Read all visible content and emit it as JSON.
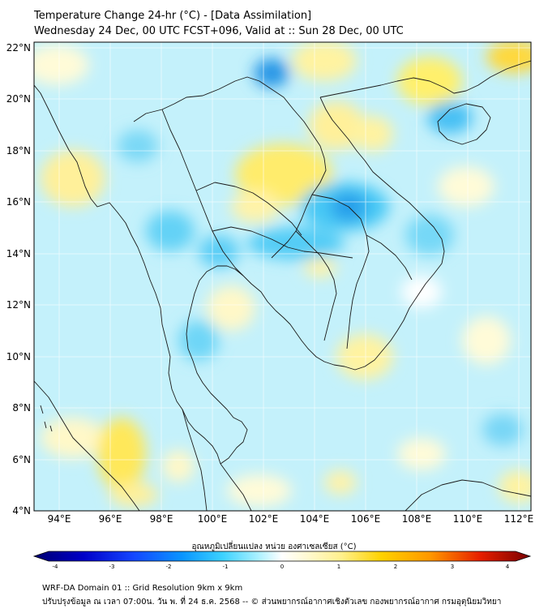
{
  "title": {
    "line1": "Temperature Change 24-hr (°C) - [Data Assimilation]",
    "line2": "Wednesday 24 Dec, 00 UTC FCST+096, Valid at :: Sun 28 Dec, 00 UTC"
  },
  "map": {
    "lat_labels": [
      "22°N",
      "20°N",
      "18°N",
      "16°N",
      "14°N",
      "12°N",
      "10°N",
      "8°N",
      "6°N",
      "4°N"
    ],
    "lon_labels": [
      "94°E",
      "96°E",
      "98°E",
      "100°E",
      "102°E",
      "104°E",
      "106°E",
      "108°E",
      "110°E",
      "112°E"
    ],
    "lat_range": [
      4,
      22
    ],
    "lon_range": [
      93,
      112.5
    ],
    "grid": true
  },
  "colorbar": {
    "label": "อุณหภูมิเปลี่ยนแปลง หน่วย องศาเซลเซียส (°C)",
    "ticks": [
      "-4",
      "-3",
      "-2",
      "-1",
      "0",
      "1",
      "2",
      "3",
      "4"
    ],
    "range": [
      -4,
      4
    ],
    "colors": [
      "#000080",
      "#0000d0",
      "#1e3cff",
      "#0096ff",
      "#28c8ff",
      "#78e6ff",
      "#d2faff",
      "#ffffff",
      "#fffae0",
      "#fff08c",
      "#ffd700",
      "#ffa500",
      "#ff6400",
      "#e60000",
      "#a00000",
      "#640000"
    ]
  },
  "footer": {
    "line1": "WRF-DA Domain 01 :: Grid Resolution 9km x 9km",
    "line2": "ปรับปรุงข้อมูล ณ เวลา 07:00น. วัน พ. ที่ 24 ธ.ค. 2568 -- © ส่วนพยากรณ์อากาศเชิงตัวเลข กองพยากรณ์อากาศ กรมอุตุนิยมวิทยา"
  }
}
